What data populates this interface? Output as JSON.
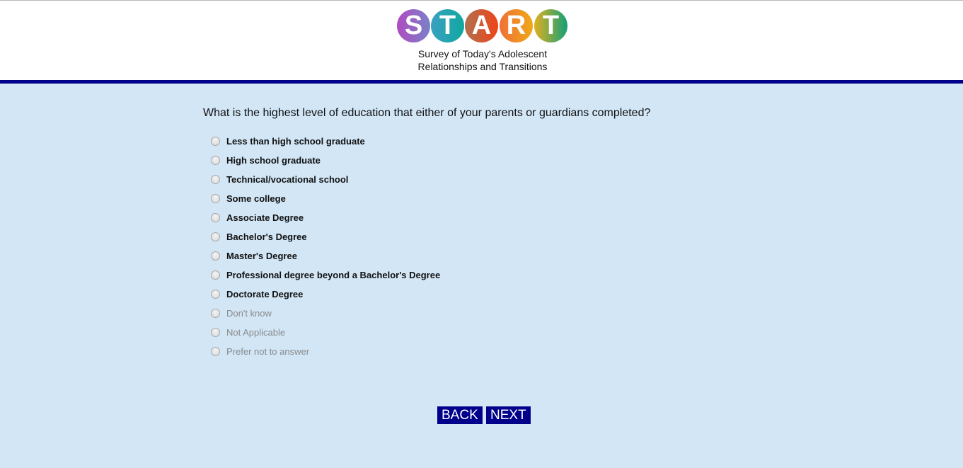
{
  "logo": {
    "letters": [
      "S",
      "T",
      "A",
      "R",
      "T"
    ],
    "tagline_line1": "Survey of Today's Adolescent",
    "tagline_line2": "Relationships and Transitions",
    "colors": [
      "#a855c0",
      "#1aa0b8",
      "#e05030",
      "#f08a28",
      "#40a870"
    ]
  },
  "question": "What is the highest level of education that either of your parents or guardians completed?",
  "options": [
    {
      "label": "Less than high school graduate",
      "muted": false
    },
    {
      "label": "High school graduate",
      "muted": false
    },
    {
      "label": "Technical/vocational school",
      "muted": false
    },
    {
      "label": "Some college",
      "muted": false
    },
    {
      "label": "Associate Degree",
      "muted": false
    },
    {
      "label": "Bachelor's Degree",
      "muted": false
    },
    {
      "label": "Master's Degree",
      "muted": false
    },
    {
      "label": "Professional degree beyond a Bachelor's Degree",
      "muted": false
    },
    {
      "label": "Doctorate Degree",
      "muted": false
    },
    {
      "label": "Don't know",
      "muted": true
    },
    {
      "label": "Not Applicable",
      "muted": true
    },
    {
      "label": "Prefer not to answer",
      "muted": true
    }
  ],
  "nav": {
    "back": "BACK",
    "next": "NEXT"
  },
  "colors": {
    "background": "#d2e6f6",
    "accent": "#00008b"
  }
}
